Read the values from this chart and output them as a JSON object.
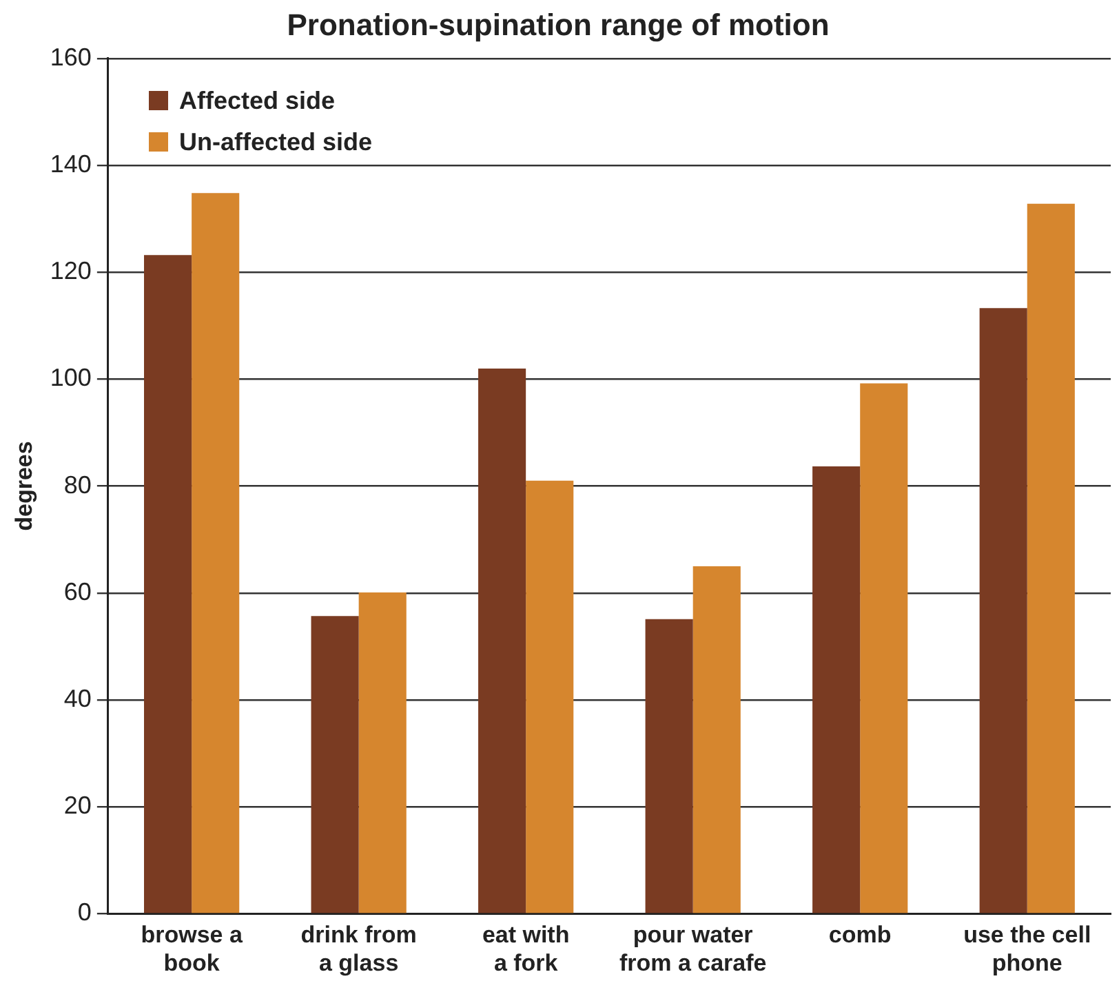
{
  "chart_data": {
    "type": "bar",
    "title": "Pronation-supination range of motion",
    "ylabel": "degrees",
    "categories": [
      "browse a\nbook",
      "drink from\na glass",
      "eat with\na fork",
      "pour water\nfrom a carafe",
      "comb",
      "use the cell\nphone"
    ],
    "series": [
      {
        "name": "Affected side",
        "color": "#7a3b22",
        "values": [
          123.2,
          55.7,
          102,
          55.1,
          83.7,
          113.3
        ]
      },
      {
        "name": "Un-affected side",
        "color": "#d6862e",
        "values": [
          134.8,
          60.1,
          81,
          65,
          99.2,
          132.8
        ]
      }
    ],
    "ylim": [
      0,
      160
    ],
    "yticks": [
      0,
      20,
      40,
      60,
      80,
      100,
      120,
      140,
      160
    ],
    "grid": "y",
    "legend": "top left"
  }
}
